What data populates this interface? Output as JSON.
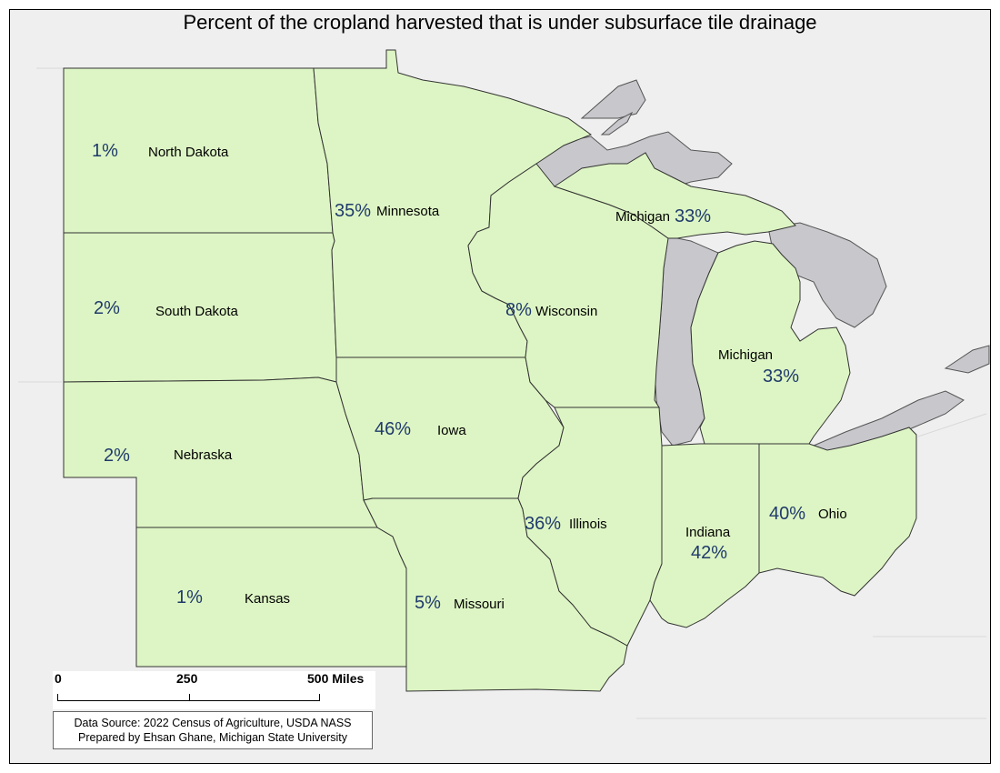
{
  "title": "Percent of the cropland harvested that is under subsurface tile drainage",
  "states": [
    {
      "name": "North Dakota",
      "pct": "1%"
    },
    {
      "name": "South Dakota",
      "pct": "2%"
    },
    {
      "name": "Nebraska",
      "pct": "2%"
    },
    {
      "name": "Kansas",
      "pct": "1%"
    },
    {
      "name": "Minnesota",
      "pct": "35%"
    },
    {
      "name": "Iowa",
      "pct": "46%"
    },
    {
      "name": "Missouri",
      "pct": "5%"
    },
    {
      "name": "Wisconsin",
      "pct": "8%"
    },
    {
      "name": "Illinois",
      "pct": "36%"
    },
    {
      "name": "Indiana",
      "pct": "42%"
    },
    {
      "name": "Ohio",
      "pct": "40%"
    },
    {
      "name": "Michigan",
      "pct": "33%"
    },
    {
      "name": "Michigan",
      "pct": "33%"
    }
  ],
  "scale": {
    "zero": "0",
    "mid": "250",
    "max": "500 Miles"
  },
  "source": {
    "line1": "Data Source: 2022 Census of Agriculture, USDA NASS",
    "line2": "Prepared by Ehsan Ghane, Michigan State University"
  },
  "colors": {
    "land": "#ddf5c4",
    "lake": "#c7c7cc",
    "background": "#efefef",
    "border": "#333333",
    "percent_text": "#1f3a6b"
  }
}
